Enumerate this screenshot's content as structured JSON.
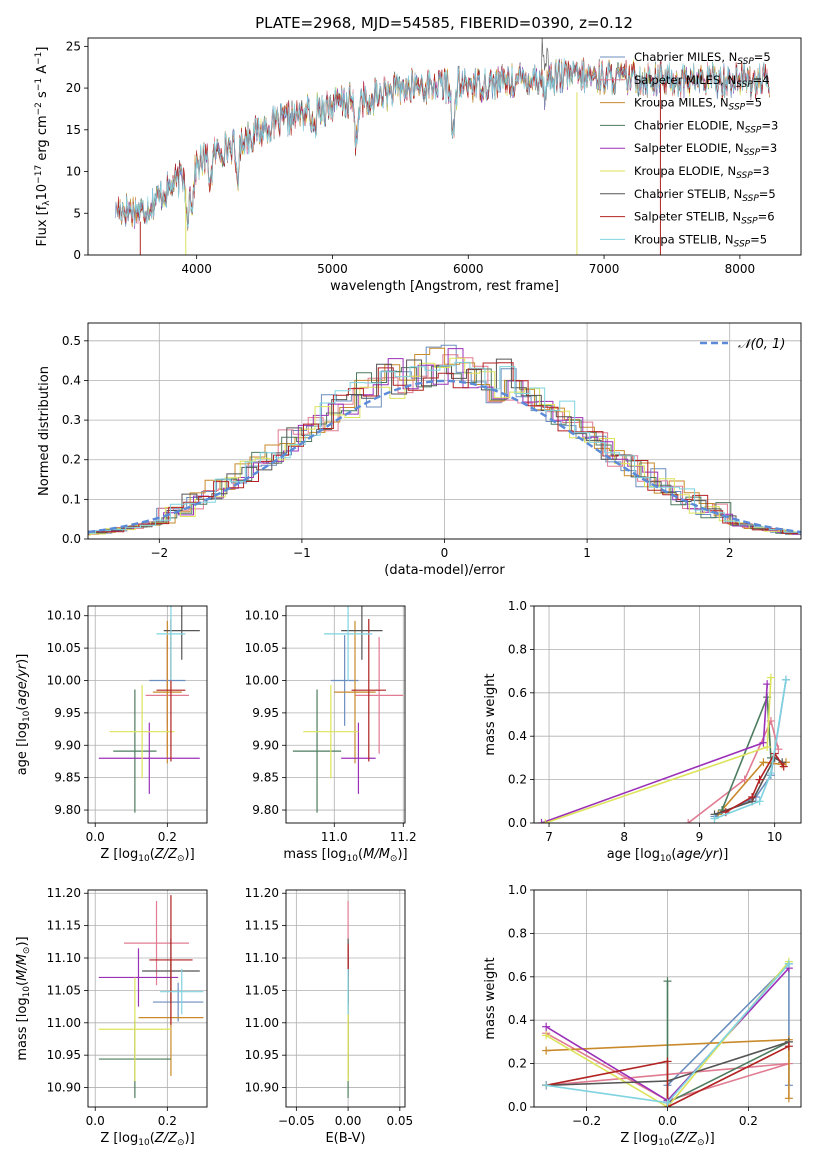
{
  "figure_title": "PLATE=2968, MJD=54585, FIBERID=0390, z=0.12",
  "models": [
    {
      "name": "Chabrier MILES",
      "nssp": "5",
      "color": "#6c8ebf"
    },
    {
      "name": "Salpeter MILES",
      "nssp": "4",
      "color": "#e07b91"
    },
    {
      "name": "Kroupa MILES",
      "nssp": "5",
      "color": "#c98a2b"
    },
    {
      "name": "Chabrier ELODIE",
      "nssp": "3",
      "color": "#4c7c5e"
    },
    {
      "name": "Salpeter ELODIE",
      "nssp": "3",
      "color": "#9b30b8"
    },
    {
      "name": "Kroupa ELODIE",
      "nssp": "3",
      "color": "#dde35a"
    },
    {
      "name": "Chabrier STELIB",
      "nssp": "5",
      "color": "#555555"
    },
    {
      "name": "Salpeter STELIB",
      "nssp": "6",
      "color": "#b22222"
    },
    {
      "name": "Kroupa STELIB",
      "nssp": "5",
      "color": "#7fd3e0"
    }
  ],
  "chart_data": [
    {
      "id": "spectrum",
      "type": "line",
      "xlabel": "wavelength [Angstrom, rest frame]",
      "ylabel": "Flux [f_λ 10^-17 erg cm^-2 s^-1 A^-1]",
      "xlim": [
        3200,
        8450
      ],
      "ylim": [
        0,
        26
      ],
      "xticks": [
        4000,
        5000,
        6000,
        7000,
        8000
      ],
      "yticks": [
        0,
        5,
        10,
        15,
        20,
        25
      ],
      "legend": "upper-right",
      "continuum": [
        [
          3400,
          5.6
        ],
        [
          3600,
          5.2
        ],
        [
          3800,
          8.0
        ],
        [
          3950,
          10.2
        ],
        [
          4100,
          12.0
        ],
        [
          4300,
          13.4
        ],
        [
          4500,
          15.2
        ],
        [
          4800,
          17.0
        ],
        [
          5000,
          18.0
        ],
        [
          5300,
          19.0
        ],
        [
          5600,
          20.2
        ],
        [
          6000,
          20.4
        ],
        [
          6300,
          20.8
        ],
        [
          6600,
          21.4
        ],
        [
          7000,
          21.3
        ],
        [
          7500,
          21.0
        ],
        [
          8000,
          21.0
        ],
        [
          8200,
          20.8
        ]
      ]
    },
    {
      "id": "residuals",
      "type": "histogram",
      "xlabel": "(data-model)/error",
      "ylabel": "Normed distribution",
      "xlim": [
        -2.5,
        2.5
      ],
      "ylim": [
        0,
        0.545
      ],
      "xticks": [
        -2,
        -1,
        0,
        1,
        2
      ],
      "yticks": [
        0.0,
        0.1,
        0.2,
        0.3,
        0.4,
        0.5
      ],
      "grid": true,
      "legend_label": "𝒩(0, 1)",
      "legend": "upper-right"
    },
    {
      "id": "age-vs-Z",
      "type": "errorbar",
      "xlabel": "Z [log10(Z/Z⊙)]",
      "ylabel": "age  [log10(age/yr)]",
      "xlim": [
        -0.02,
        0.31
      ],
      "ylim": [
        9.78,
        10.115
      ],
      "xticks": [
        0.0,
        0.2
      ],
      "yticks": [
        9.8,
        9.85,
        9.9,
        9.95,
        10.0,
        10.05,
        10.1
      ],
      "grid": true,
      "points": [
        {
          "x": 0.2,
          "xerr": 0.05,
          "y": 10.0,
          "yerr": 0.07
        },
        {
          "x": 0.2,
          "xerr": 0.06,
          "y": 9.977,
          "yerr": 0.09
        },
        {
          "x": 0.2,
          "xerr": 0.04,
          "y": 9.982,
          "yerr": 0.11
        },
        {
          "x": 0.11,
          "xerr": 0.06,
          "y": 9.891,
          "yerr": 0.095
        },
        {
          "x": 0.15,
          "xerr": 0.14,
          "y": 9.88,
          "yerr": 0.055
        },
        {
          "x": 0.13,
          "xerr": 0.09,
          "y": 9.921,
          "yerr": 0.072
        },
        {
          "x": 0.24,
          "xerr": 0.05,
          "y": 10.077,
          "yerr": 0.045
        },
        {
          "x": 0.21,
          "xerr": 0.04,
          "y": 9.985,
          "yerr": 0.11
        },
        {
          "x": 0.21,
          "xerr": 0.04,
          "y": 10.072,
          "yerr": 0.072
        }
      ]
    },
    {
      "id": "age-vs-mass",
      "type": "errorbar",
      "xlabel": "mass [log10(M/M⊙)]",
      "ylabel": "",
      "xlim": [
        10.86,
        11.205
      ],
      "ylim": [
        9.78,
        10.115
      ],
      "xticks": [
        11.0,
        11.2
      ],
      "yticks": [
        9.8,
        9.85,
        9.9,
        9.95,
        10.0,
        10.05,
        10.1
      ],
      "grid": true,
      "points": [
        {
          "x": 11.03,
          "xerr": 0.04,
          "y": 10.0,
          "yerr": 0.07
        },
        {
          "x": 11.13,
          "xerr": 0.07,
          "y": 9.977,
          "yerr": 0.09
        },
        {
          "x": 11.06,
          "xerr": 0.06,
          "y": 9.982,
          "yerr": 0.11
        },
        {
          "x": 10.95,
          "xerr": 0.07,
          "y": 9.891,
          "yerr": 0.095
        },
        {
          "x": 11.07,
          "xerr": 0.05,
          "y": 9.88,
          "yerr": 0.055
        },
        {
          "x": 10.99,
          "xerr": 0.08,
          "y": 9.921,
          "yerr": 0.072
        },
        {
          "x": 11.08,
          "xerr": 0.06,
          "y": 10.077,
          "yerr": 0.045
        },
        {
          "x": 11.1,
          "xerr": 0.05,
          "y": 9.985,
          "yerr": 0.11
        },
        {
          "x": 11.04,
          "xerr": 0.07,
          "y": 10.072,
          "yerr": 0.072
        }
      ]
    },
    {
      "id": "mass-weight-vs-age",
      "type": "line",
      "xlabel": "age  [log10(age/yr)]",
      "ylabel": "mass weight",
      "xlim": [
        6.8,
        10.35
      ],
      "ylim": [
        0,
        1.0
      ],
      "xticks": [
        7,
        8,
        9,
        10
      ],
      "yticks": [
        0.0,
        0.2,
        0.4,
        0.6,
        0.8,
        1.0
      ],
      "grid": true,
      "series": [
        {
          "values": [
            [
              9.2,
              0.03
            ],
            [
              9.75,
              0.12
            ],
            [
              9.95,
              0.22
            ],
            [
              10.15,
              0.66
            ]
          ]
        },
        {
          "values": [
            [
              8.85,
              0.0
            ],
            [
              9.6,
              0.2
            ],
            [
              9.95,
              0.47
            ],
            [
              10.05,
              0.34
            ]
          ]
        },
        {
          "values": [
            [
              9.25,
              0.04
            ],
            [
              9.85,
              0.28
            ],
            [
              10.1,
              0.27
            ],
            [
              10.15,
              0.28
            ]
          ]
        },
        {
          "values": [
            [
              9.3,
              0.06
            ],
            [
              9.9,
              0.58
            ],
            [
              9.95,
              0.3
            ]
          ]
        },
        {
          "values": [
            [
              6.9,
              0.0
            ],
            [
              9.85,
              0.37
            ],
            [
              9.9,
              0.64
            ]
          ]
        },
        {
          "values": [
            [
              6.95,
              0.0
            ],
            [
              9.9,
              0.35
            ],
            [
              9.95,
              0.67
            ]
          ]
        },
        {
          "values": [
            [
              9.2,
              0.04
            ],
            [
              9.7,
              0.1
            ],
            [
              10.0,
              0.3
            ],
            [
              10.1,
              0.28
            ]
          ]
        },
        {
          "values": [
            [
              9.35,
              0.05
            ],
            [
              9.7,
              0.12
            ],
            [
              9.8,
              0.2
            ],
            [
              10.0,
              0.32
            ],
            [
              10.12,
              0.26
            ]
          ]
        },
        {
          "values": [
            [
              9.2,
              0.02
            ],
            [
              9.8,
              0.1
            ],
            [
              9.95,
              0.23
            ],
            [
              10.15,
              0.66
            ]
          ]
        }
      ]
    },
    {
      "id": "mass-vs-Z",
      "type": "errorbar",
      "xlabel": "Z [log10(Z/Z⊙)]",
      "ylabel": "mass [log10(M/M⊙)]",
      "xlim": [
        -0.02,
        0.31
      ],
      "ylim": [
        10.87,
        11.205
      ],
      "xticks": [
        0.0,
        0.2
      ],
      "yticks": [
        10.9,
        10.95,
        11.0,
        11.05,
        11.1,
        11.15,
        11.2
      ],
      "grid": true,
      "points": [
        {
          "x": 0.23,
          "xerr": 0.07,
          "y": 11.032,
          "yerr": 0.03
        },
        {
          "x": 0.17,
          "xerr": 0.09,
          "y": 11.123,
          "yerr": 0.065
        },
        {
          "x": 0.21,
          "xerr": 0.09,
          "y": 11.008,
          "yerr": 0.09
        },
        {
          "x": 0.11,
          "xerr": 0.1,
          "y": 10.944,
          "yerr": 0.06
        },
        {
          "x": 0.12,
          "xerr": 0.11,
          "y": 11.07,
          "yerr": 0.045
        },
        {
          "x": 0.11,
          "xerr": 0.1,
          "y": 10.99,
          "yerr": 0.08
        },
        {
          "x": 0.21,
          "xerr": 0.08,
          "y": 11.08,
          "yerr": 0.05
        },
        {
          "x": 0.21,
          "xerr": 0.06,
          "y": 11.097,
          "yerr": 0.1
        },
        {
          "x": 0.24,
          "xerr": 0.06,
          "y": 11.048,
          "yerr": 0.035
        }
      ]
    },
    {
      "id": "mass-vs-ebv",
      "type": "errorbar",
      "xlabel": "E(B-V)",
      "ylabel": "",
      "xlim": [
        -0.06,
        0.055
      ],
      "ylim": [
        10.87,
        11.205
      ],
      "xticks": [
        -0.05,
        0.0,
        0.05
      ],
      "yticks": [
        10.9,
        10.95,
        11.0,
        11.05,
        11.1,
        11.15,
        11.2
      ],
      "grid": true,
      "points": [
        {
          "x": 0.0,
          "xerr": 0.0,
          "y": 11.032,
          "yerr": 0.03
        },
        {
          "x": 0.0,
          "xerr": 0.0,
          "y": 11.123,
          "yerr": 0.065
        },
        {
          "x": 0.0,
          "xerr": 0.0,
          "y": 11.008,
          "yerr": 0.09
        },
        {
          "x": 0.0,
          "xerr": 0.0,
          "y": 10.944,
          "yerr": 0.06
        },
        {
          "x": 0.0,
          "xerr": 0.0,
          "y": 11.07,
          "yerr": 0.045
        },
        {
          "x": 0.0,
          "xerr": 0.0,
          "y": 10.99,
          "yerr": 0.08
        },
        {
          "x": 0.0,
          "xerr": 0.0,
          "y": 11.08,
          "yerr": 0.05
        },
        {
          "x": 0.0,
          "xerr": 0.0,
          "y": 11.097,
          "yerr": 0.025
        },
        {
          "x": 0.0,
          "xerr": 0.0,
          "y": 11.048,
          "yerr": 0.035
        }
      ]
    },
    {
      "id": "mass-weight-vs-Z",
      "type": "line",
      "xlabel": "Z [log10(Z/Z⊙)]",
      "ylabel": "mass weight",
      "xlim": [
        -0.33,
        0.33
      ],
      "ylim": [
        0,
        1.0
      ],
      "xticks": [
        -0.2,
        0.0,
        0.2
      ],
      "yticks": [
        0.0,
        0.2,
        0.4,
        0.6,
        0.8,
        1.0
      ],
      "grid": true,
      "series": [
        {
          "values": [
            [
              0.0,
              0.03
            ],
            [
              0.0,
              0.1
            ],
            [
              0.3,
              0.66
            ],
            [
              0.3,
              0.1
            ]
          ]
        },
        {
          "values": [
            [
              -0.3,
              0.34
            ],
            [
              0.0,
              0.03
            ],
            [
              0.3,
              0.2
            ],
            [
              -0.3,
              0.1
            ]
          ]
        },
        {
          "values": [
            [
              -0.3,
              0.26
            ],
            [
              0.3,
              0.31
            ],
            [
              0.3,
              0.04
            ]
          ]
        },
        {
          "values": [
            [
              0.0,
              0.58
            ],
            [
              0.0,
              0.02
            ],
            [
              0.3,
              0.3
            ]
          ]
        },
        {
          "values": [
            [
              -0.3,
              0.37
            ],
            [
              0.0,
              0.03
            ],
            [
              0.3,
              0.64
            ]
          ]
        },
        {
          "values": [
            [
              -0.3,
              0.33
            ],
            [
              0.0,
              0.0
            ],
            [
              0.3,
              0.67
            ]
          ]
        },
        {
          "values": [
            [
              -0.3,
              0.1
            ],
            [
              0.0,
              0.12
            ],
            [
              0.3,
              0.3
            ]
          ]
        },
        {
          "values": [
            [
              -0.3,
              0.1
            ],
            [
              0.0,
              0.21
            ],
            [
              0.0,
              0.0
            ],
            [
              0.3,
              0.28
            ]
          ]
        },
        {
          "values": [
            [
              -0.3,
              0.1
            ],
            [
              0.0,
              0.02
            ],
            [
              0.3,
              0.66
            ]
          ]
        }
      ]
    }
  ]
}
